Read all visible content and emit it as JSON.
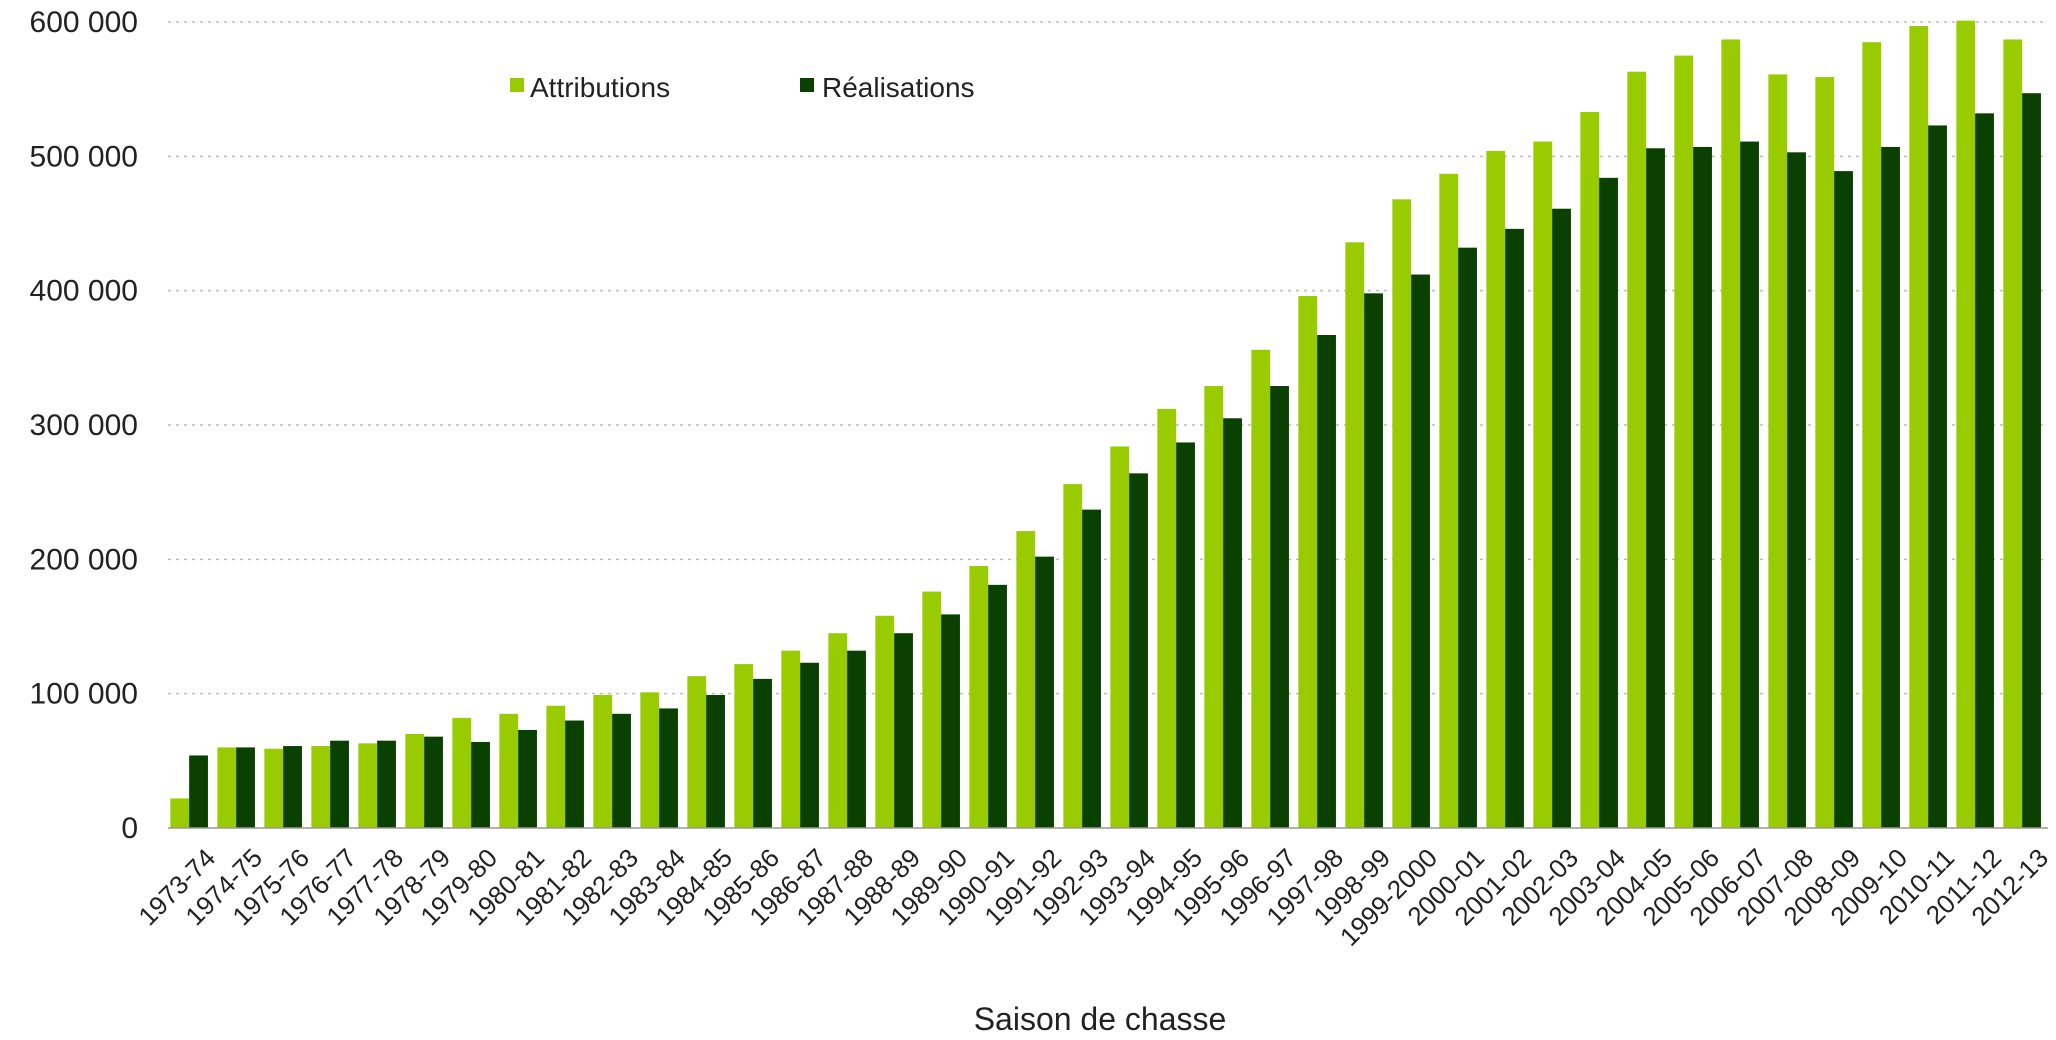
{
  "chart_data": {
    "type": "bar",
    "title": "",
    "xlabel": "Saison de chasse",
    "ylabel": "",
    "ylim": [
      0,
      600000
    ],
    "yticks": [
      0,
      100000,
      200000,
      300000,
      400000,
      500000,
      600000
    ],
    "ytick_labels": [
      "0",
      "100 000",
      "200 000",
      "300 000",
      "400 000",
      "500 000",
      "600 000"
    ],
    "grid": "horizontal dashed",
    "legend": "top-left",
    "categories": [
      "1973-74",
      "1974-75",
      "1975-76",
      "1976-77",
      "1977-78",
      "1978-79",
      "1979-80",
      "1980-81",
      "1981-82",
      "1982-83",
      "1983-84",
      "1984-85",
      "1985-86",
      "1986-87",
      "1987-88",
      "1988-89",
      "1989-90",
      "1990-91",
      "1991-92",
      "1992-93",
      "1993-94",
      "1994-95",
      "1995-96",
      "1996-97",
      "1997-98",
      "1998-99",
      "1999-2000",
      "2000-01",
      "2001-02",
      "2002-03",
      "2003-04",
      "2004-05",
      "2005-06",
      "2006-07",
      "2007-08",
      "2008-09",
      "2009-10",
      "2010-11",
      "2011-12",
      "2012-13"
    ],
    "series": [
      {
        "name": "Attributions",
        "color": "#99cc00",
        "values": [
          22000,
          60000,
          59000,
          61000,
          63000,
          70000,
          82000,
          85000,
          91000,
          99000,
          101000,
          113000,
          122000,
          132000,
          145000,
          158000,
          176000,
          195000,
          221000,
          256000,
          284000,
          312000,
          329000,
          356000,
          396000,
          436000,
          468000,
          487000,
          504000,
          511000,
          533000,
          563000,
          575000,
          587000,
          561000,
          559000,
          585000,
          597000,
          601000,
          587000
        ]
      },
      {
        "name": "Réalisations",
        "color": "#0a4000",
        "values": [
          54000,
          60000,
          61000,
          65000,
          65000,
          68000,
          64000,
          73000,
          80000,
          85000,
          89000,
          99000,
          111000,
          123000,
          132000,
          145000,
          159000,
          181000,
          202000,
          237000,
          264000,
          287000,
          305000,
          329000,
          367000,
          398000,
          412000,
          432000,
          446000,
          461000,
          484000,
          506000,
          507000,
          511000,
          503000,
          489000,
          507000,
          523000,
          532000,
          547000
        ]
      }
    ]
  }
}
